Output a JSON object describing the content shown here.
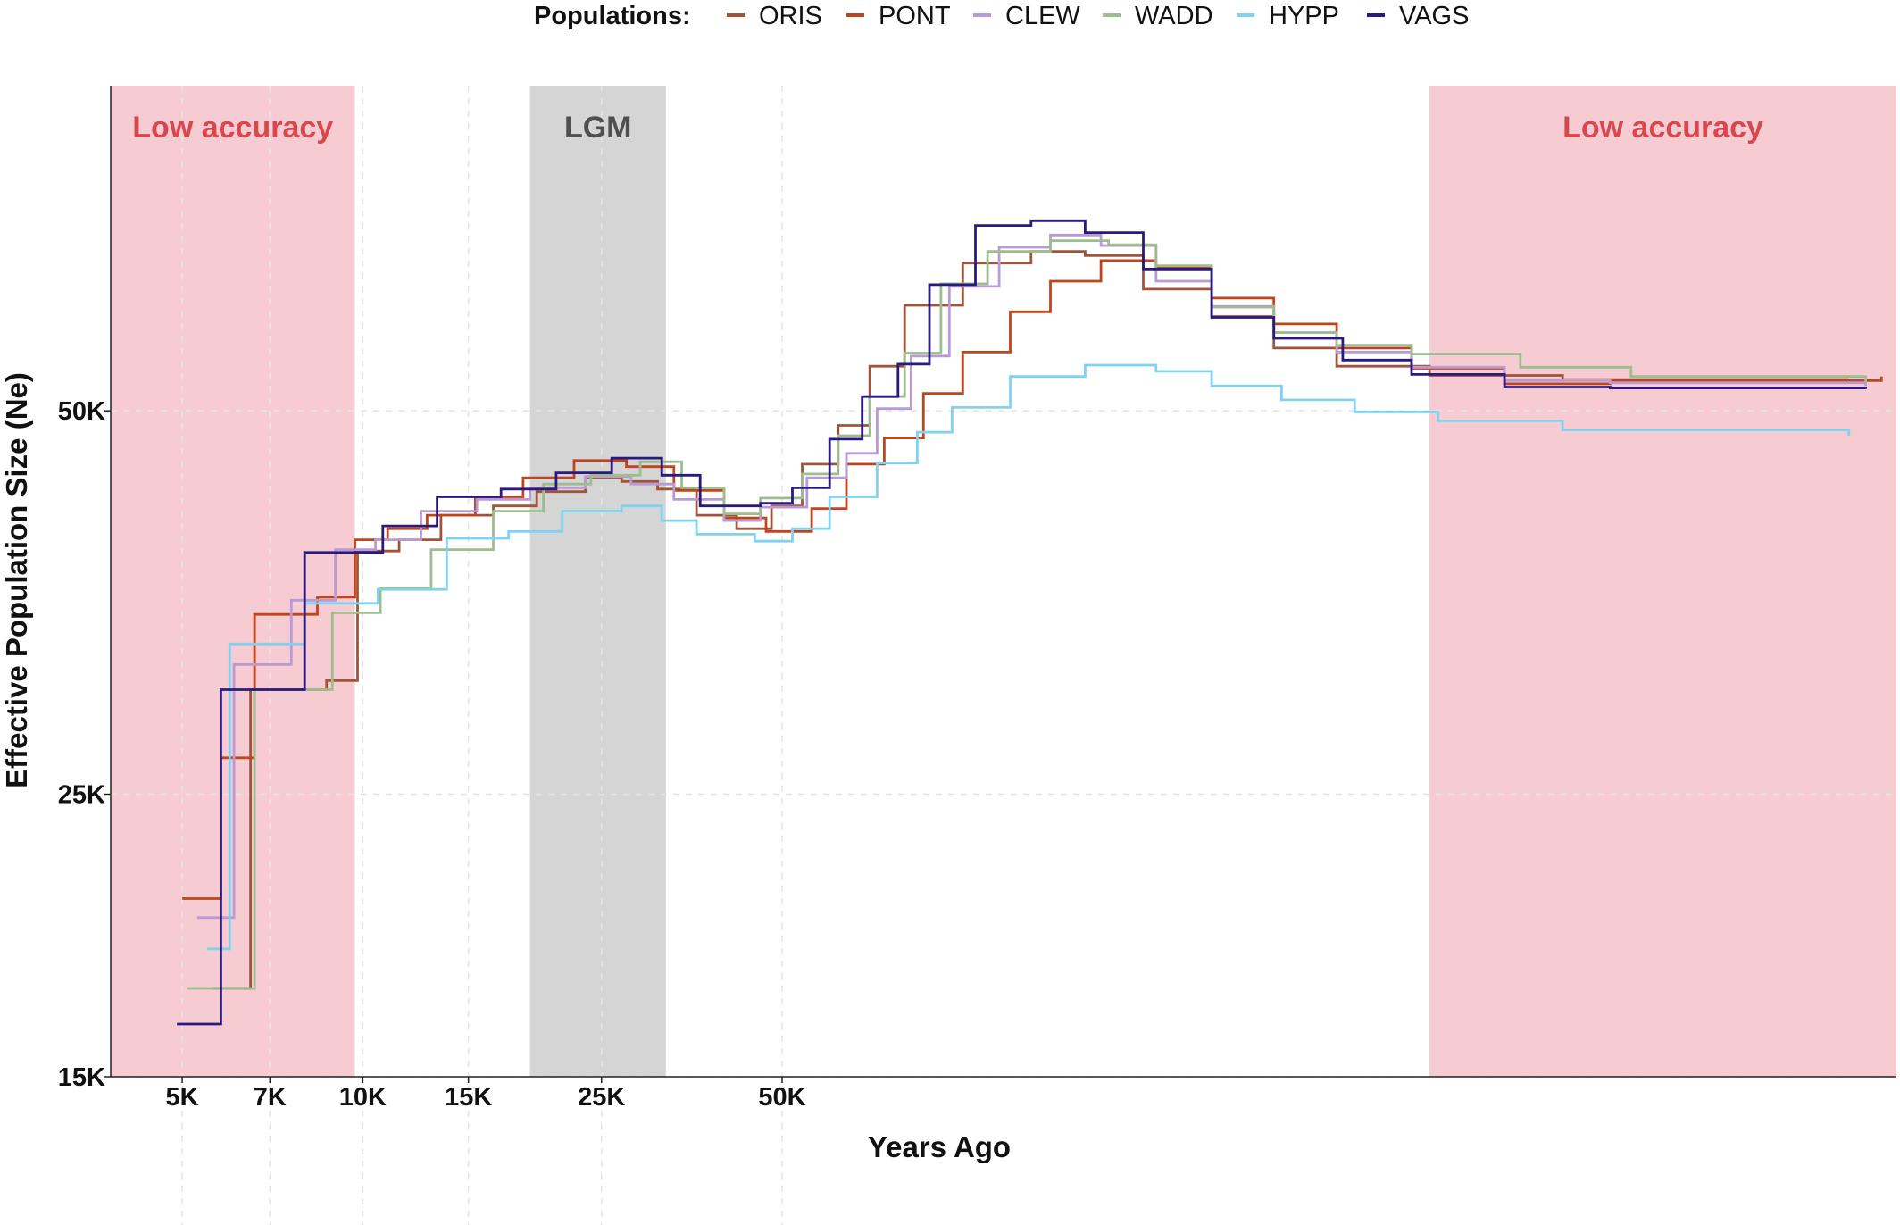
{
  "chart_data": {
    "type": "line",
    "step": true,
    "title": "",
    "xlabel": "Years Ago",
    "ylabel": "Effective Population Size (Ne)",
    "x_scale": "log",
    "y_scale": "log",
    "xlim": [
      3800,
      3600000
    ],
    "ylim": [
      15000,
      90000
    ],
    "x_ticks": [
      {
        "value": 5000,
        "label": "5K"
      },
      {
        "value": 7000,
        "label": "7K"
      },
      {
        "value": 10000,
        "label": "10K"
      },
      {
        "value": 15000,
        "label": "15K"
      },
      {
        "value": 25000,
        "label": "25K"
      },
      {
        "value": 50000,
        "label": "50K"
      }
    ],
    "y_ticks": [
      {
        "value": 15000,
        "label": "15K"
      },
      {
        "value": 25000,
        "label": "25K"
      },
      {
        "value": 50000,
        "label": "50K"
      }
    ],
    "grid": true,
    "legend": {
      "title": "Populations:",
      "position": "top"
    },
    "shaded_regions": [
      {
        "label": "Low accuracy",
        "x_from": 3800,
        "x_to": 9700,
        "color": "#f6ccd2",
        "label_color": "#d9474e"
      },
      {
        "label": "LGM",
        "x_from": 19000,
        "x_to": 32000,
        "color": "#d5d5d5",
        "label_color": "#4f4f4f"
      },
      {
        "label": "Low accuracy",
        "x_from": 600000,
        "x_to": 3600000,
        "color": "#f6ccd2",
        "label_color": "#d9474e"
      }
    ],
    "series": [
      {
        "name": "ORIS",
        "color": "#a0553a",
        "points": [
          [
            5600,
            17600
          ],
          [
            6500,
            30200
          ],
          [
            8700,
            30700
          ],
          [
            9800,
            38800
          ],
          [
            11500,
            39600
          ],
          [
            13500,
            41400
          ],
          [
            16500,
            42100
          ],
          [
            19500,
            43200
          ],
          [
            23500,
            44300
          ],
          [
            27000,
            44000
          ],
          [
            31000,
            43400
          ],
          [
            36000,
            41400
          ],
          [
            42000,
            40400
          ],
          [
            48000,
            42100
          ],
          [
            54000,
            45400
          ],
          [
            62000,
            48700
          ],
          [
            70000,
            54200
          ],
          [
            80000,
            60500
          ],
          [
            100000,
            65300
          ],
          [
            130000,
            66700
          ],
          [
            160000,
            66200
          ],
          [
            200000,
            62300
          ],
          [
            260000,
            59300
          ],
          [
            330000,
            56000
          ],
          [
            420000,
            54200
          ],
          [
            600000,
            53300
          ],
          [
            1000000,
            52900
          ],
          [
            3000000,
            52900
          ]
        ]
      },
      {
        "name": "PONT",
        "color": "#c0451c",
        "points": [
          [
            5000,
            20700
          ],
          [
            5800,
            26700
          ],
          [
            6600,
            34600
          ],
          [
            8400,
            35700
          ],
          [
            9700,
            39600
          ],
          [
            11000,
            40400
          ],
          [
            12800,
            41400
          ],
          [
            15400,
            42800
          ],
          [
            18500,
            44300
          ],
          [
            22500,
            45700
          ],
          [
            27500,
            45200
          ],
          [
            33000,
            43300
          ],
          [
            40000,
            41200
          ],
          [
            47000,
            40200
          ],
          [
            56000,
            41900
          ],
          [
            64000,
            45400
          ],
          [
            74000,
            47600
          ],
          [
            86000,
            51600
          ],
          [
            100000,
            55600
          ],
          [
            120000,
            59800
          ],
          [
            140000,
            63200
          ],
          [
            170000,
            65600
          ],
          [
            210000,
            64800
          ],
          [
            260000,
            61300
          ],
          [
            330000,
            58500
          ],
          [
            420000,
            56000
          ],
          [
            560000,
            54000
          ],
          [
            800000,
            52500
          ],
          [
            1200000,
            52800
          ],
          [
            3400000,
            53200
          ]
        ]
      },
      {
        "name": "CLEW",
        "color": "#b99ad5",
        "points": [
          [
            5300,
            20000
          ],
          [
            6100,
            31600
          ],
          [
            7600,
            35500
          ],
          [
            9000,
            38900
          ],
          [
            10500,
            39600
          ],
          [
            12500,
            41700
          ],
          [
            15500,
            42600
          ],
          [
            19000,
            43500
          ],
          [
            23500,
            44400
          ],
          [
            28000,
            43800
          ],
          [
            33000,
            42600
          ],
          [
            40000,
            41000
          ],
          [
            46000,
            42000
          ],
          [
            55000,
            44300
          ],
          [
            64000,
            46300
          ],
          [
            72000,
            50200
          ],
          [
            82000,
            55200
          ],
          [
            95000,
            62600
          ],
          [
            115000,
            67200
          ],
          [
            140000,
            68700
          ],
          [
            170000,
            67400
          ],
          [
            210000,
            63200
          ],
          [
            260000,
            60400
          ],
          [
            330000,
            57600
          ],
          [
            420000,
            55600
          ],
          [
            560000,
            54100
          ],
          [
            800000,
            52800
          ],
          [
            1200000,
            52600
          ],
          [
            3200000,
            52300
          ]
        ]
      },
      {
        "name": "WADD",
        "color": "#9ebd8f",
        "points": [
          [
            5100,
            17600
          ],
          [
            6600,
            30200
          ],
          [
            8900,
            34700
          ],
          [
            10700,
            36300
          ],
          [
            13000,
            38900
          ],
          [
            16500,
            41700
          ],
          [
            20000,
            43800
          ],
          [
            24000,
            44500
          ],
          [
            29000,
            45600
          ],
          [
            34000,
            43500
          ],
          [
            40000,
            41500
          ],
          [
            46000,
            42700
          ],
          [
            54000,
            44600
          ],
          [
            62000,
            47800
          ],
          [
            70000,
            51300
          ],
          [
            80000,
            55500
          ],
          [
            92000,
            62900
          ],
          [
            110000,
            66700
          ],
          [
            140000,
            68000
          ],
          [
            175000,
            67500
          ],
          [
            210000,
            65000
          ],
          [
            260000,
            60300
          ],
          [
            330000,
            57600
          ],
          [
            420000,
            56300
          ],
          [
            560000,
            55400
          ],
          [
            850000,
            54100
          ],
          [
            1300000,
            53200
          ],
          [
            3200000,
            52700
          ]
        ]
      },
      {
        "name": "HYPP",
        "color": "#80d2ee",
        "points": [
          [
            5500,
            18900
          ],
          [
            6000,
            32800
          ],
          [
            8000,
            35300
          ],
          [
            10600,
            36200
          ],
          [
            13800,
            39700
          ],
          [
            17500,
            40200
          ],
          [
            21500,
            41700
          ],
          [
            27000,
            42100
          ],
          [
            31500,
            41000
          ],
          [
            36000,
            40000
          ],
          [
            45000,
            39500
          ],
          [
            52000,
            40400
          ],
          [
            60000,
            42800
          ],
          [
            72000,
            45500
          ],
          [
            84000,
            48100
          ],
          [
            96000,
            50300
          ],
          [
            120000,
            53200
          ],
          [
            160000,
            54300
          ],
          [
            210000,
            53700
          ],
          [
            260000,
            52300
          ],
          [
            340000,
            51000
          ],
          [
            450000,
            49900
          ],
          [
            620000,
            49100
          ],
          [
            1000000,
            48300
          ],
          [
            3000000,
            47800
          ]
        ]
      },
      {
        "name": "VAGS",
        "color": "#2a1a80",
        "points": [
          [
            4900,
            16500
          ],
          [
            5800,
            30200
          ],
          [
            8000,
            38700
          ],
          [
            10800,
            40600
          ],
          [
            13300,
            42800
          ],
          [
            17000,
            43400
          ],
          [
            21000,
            44700
          ],
          [
            26000,
            45900
          ],
          [
            31500,
            44500
          ],
          [
            36500,
            42100
          ],
          [
            46000,
            42300
          ],
          [
            52000,
            43500
          ],
          [
            60000,
            47500
          ],
          [
            68000,
            51300
          ],
          [
            78000,
            54400
          ],
          [
            88000,
            62800
          ],
          [
            105000,
            69900
          ],
          [
            130000,
            70500
          ],
          [
            160000,
            69000
          ],
          [
            200000,
            64600
          ],
          [
            260000,
            59200
          ],
          [
            330000,
            57000
          ],
          [
            430000,
            54800
          ],
          [
            560000,
            53400
          ],
          [
            800000,
            52200
          ],
          [
            1200000,
            52100
          ],
          [
            3200000,
            52000
          ]
        ]
      }
    ]
  }
}
